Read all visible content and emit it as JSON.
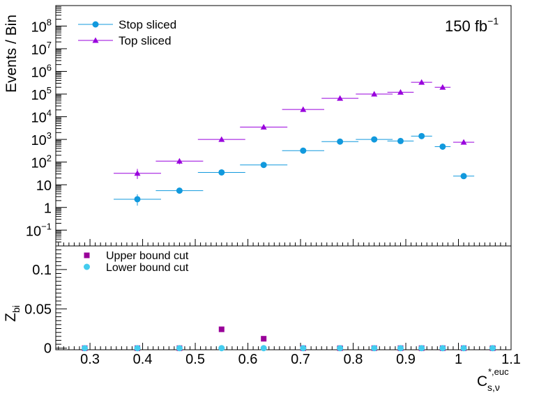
{
  "chart_data": [
    {
      "type": "scatter",
      "panel": "upper",
      "ylabel": "Events / Bin",
      "yscale": "log",
      "ylim": [
        0.02,
        800000000
      ],
      "xlim": [
        0.235,
        1.1
      ],
      "annotation": "150 fb",
      "annotation_sup": "−1",
      "ytick_labels": [
        {
          "value": 0.1,
          "base": "10",
          "exp": "−1"
        },
        {
          "value": 1,
          "base": "1",
          "exp": ""
        },
        {
          "value": 10,
          "base": "10",
          "exp": ""
        },
        {
          "value": 100,
          "base": "10",
          "exp": "2"
        },
        {
          "value": 1000,
          "base": "10",
          "exp": "3"
        },
        {
          "value": 10000,
          "base": "10",
          "exp": "4"
        },
        {
          "value": 100000,
          "base": "10",
          "exp": "5"
        },
        {
          "value": 1000000,
          "base": "10",
          "exp": "6"
        },
        {
          "value": 10000000,
          "base": "10",
          "exp": "7"
        },
        {
          "value": 100000000,
          "base": "10",
          "exp": "8"
        }
      ],
      "legend": [
        {
          "label": "Stop sliced",
          "color": "#1199dd",
          "marker": "circle"
        },
        {
          "label": "Top sliced",
          "color": "#9900dd",
          "marker": "triangle"
        }
      ],
      "legend_position": "top-left",
      "series": [
        {
          "name": "Stop sliced",
          "color": "#1199dd",
          "marker": "circle",
          "points": [
            {
              "x": 0.39,
              "xlo": 0.345,
              "xhi": 0.435,
              "y": 2.3,
              "ylo": 1.2,
              "yhi": 3.8
            },
            {
              "x": 0.47,
              "xlo": 0.425,
              "xhi": 0.515,
              "y": 5.5
            },
            {
              "x": 0.55,
              "xlo": 0.505,
              "xhi": 0.595,
              "y": 35
            },
            {
              "x": 0.63,
              "xlo": 0.585,
              "xhi": 0.675,
              "y": 75
            },
            {
              "x": 0.705,
              "xlo": 0.665,
              "xhi": 0.745,
              "y": 320
            },
            {
              "x": 0.775,
              "xlo": 0.74,
              "xhi": 0.81,
              "y": 800
            },
            {
              "x": 0.84,
              "xlo": 0.805,
              "xhi": 0.875,
              "y": 1000
            },
            {
              "x": 0.89,
              "xlo": 0.865,
              "xhi": 0.915,
              "y": 850
            },
            {
              "x": 0.93,
              "xlo": 0.91,
              "xhi": 0.95,
              "y": 1400
            },
            {
              "x": 0.97,
              "xlo": 0.955,
              "xhi": 0.985,
              "y": 480
            },
            {
              "x": 1.01,
              "xlo": 0.99,
              "xhi": 1.03,
              "y": 24
            }
          ]
        },
        {
          "name": "Top sliced",
          "color": "#9900dd",
          "marker": "triangle",
          "points": [
            {
              "x": 0.39,
              "xlo": 0.345,
              "xhi": 0.435,
              "y": 32,
              "ylo": 18,
              "yhi": 50
            },
            {
              "x": 0.47,
              "xlo": 0.425,
              "xhi": 0.515,
              "y": 110,
              "ylo": 80,
              "yhi": 140
            },
            {
              "x": 0.55,
              "xlo": 0.505,
              "xhi": 0.595,
              "y": 1000
            },
            {
              "x": 0.63,
              "xlo": 0.585,
              "xhi": 0.675,
              "y": 3500
            },
            {
              "x": 0.705,
              "xlo": 0.665,
              "xhi": 0.745,
              "y": 21000
            },
            {
              "x": 0.775,
              "xlo": 0.74,
              "xhi": 0.81,
              "y": 65000
            },
            {
              "x": 0.84,
              "xlo": 0.805,
              "xhi": 0.875,
              "y": 100000
            },
            {
              "x": 0.89,
              "xlo": 0.865,
              "xhi": 0.915,
              "y": 120000
            },
            {
              "x": 0.93,
              "xlo": 0.91,
              "xhi": 0.95,
              "y": 330000
            },
            {
              "x": 0.97,
              "xlo": 0.955,
              "xhi": 0.985,
              "y": 200000
            },
            {
              "x": 1.01,
              "xlo": 0.99,
              "xhi": 1.03,
              "y": 750
            }
          ]
        }
      ]
    },
    {
      "type": "scatter",
      "panel": "lower",
      "ylabel": "Z",
      "ylabel_sub": "bi",
      "xlabel": "C",
      "xlabel_sup": "*,euc",
      "xlabel_sub": "s,ν",
      "xlim": [
        0.235,
        1.1
      ],
      "ylim": [
        -0.002,
        0.13
      ],
      "yticks": [
        0,
        0.05,
        0.1
      ],
      "ytick_labels": [
        "0",
        "0.05",
        "0.1"
      ],
      "xticks": [
        0.3,
        0.4,
        0.5,
        0.6,
        0.7,
        0.8,
        0.9,
        1.0,
        1.1
      ],
      "xtick_labels": [
        "0.3",
        "0.4",
        "0.5",
        "0.6",
        "0.7",
        "0.8",
        "0.9",
        "1",
        "1.1"
      ],
      "legend": [
        {
          "label": "Upper bound cut",
          "color": "#990099",
          "marker": "square"
        },
        {
          "label": "Lower bound cut",
          "color": "#44ccee",
          "marker": "circle"
        }
      ],
      "legend_position": "top-left",
      "series": [
        {
          "name": "Upper bound cut",
          "color": "#990099",
          "marker": "square",
          "x": [
            0.29,
            0.39,
            0.47,
            0.55,
            0.63,
            0.705,
            0.775,
            0.84,
            0.89,
            0.93,
            0.97,
            1.01,
            1.065
          ],
          "y": [
            0,
            0,
            0,
            0.024,
            0.012,
            0,
            0,
            0,
            0,
            0,
            0,
            0,
            0
          ]
        },
        {
          "name": "Lower bound cut",
          "color": "#44ccee",
          "marker": "circle",
          "x": [
            0.29,
            0.39,
            0.47,
            0.55,
            0.63,
            0.705,
            0.775,
            0.84,
            0.89,
            0.93,
            0.97,
            1.01,
            1.065
          ],
          "y": [
            0,
            0,
            0,
            0,
            0,
            0,
            0,
            0,
            0,
            0,
            0,
            0,
            0
          ]
        }
      ]
    }
  ]
}
